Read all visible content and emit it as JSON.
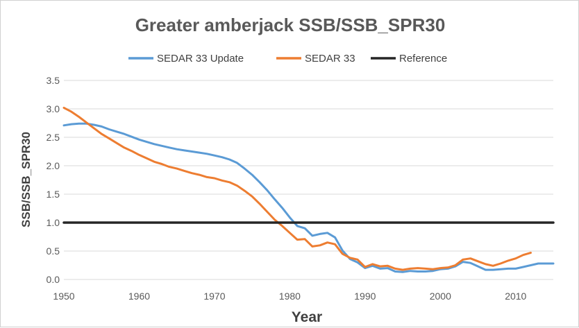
{
  "chart_data": {
    "type": "line",
    "title": "Greater amberjack SSB/SSB_SPR30",
    "xlabel": "Year",
    "ylabel": "SSB/SSB_SPR30",
    "xlim": [
      1950,
      2015
    ],
    "ylim": [
      0,
      3.5
    ],
    "x_ticks": [
      "1950",
      "1960",
      "1970",
      "1980",
      "1990",
      "2000",
      "2010"
    ],
    "y_ticks": [
      "0.0",
      "0.5",
      "1.0",
      "1.5",
      "2.0",
      "2.5",
      "3.0",
      "3.5"
    ],
    "grid": "horizontal",
    "legend_position": "top",
    "series": [
      {
        "name": "SEDAR 33 Update",
        "color": "#5b9bd5",
        "x": [
          1950,
          1951,
          1952,
          1953,
          1954,
          1955,
          1956,
          1957,
          1958,
          1959,
          1960,
          1961,
          1962,
          1963,
          1964,
          1965,
          1966,
          1967,
          1968,
          1969,
          1970,
          1971,
          1972,
          1973,
          1974,
          1975,
          1976,
          1977,
          1978,
          1979,
          1980,
          1981,
          1982,
          1983,
          1984,
          1985,
          1986,
          1987,
          1988,
          1989,
          1990,
          1991,
          1992,
          1993,
          1994,
          1995,
          1996,
          1997,
          1998,
          1999,
          2000,
          2001,
          2002,
          2003,
          2004,
          2005,
          2006,
          2007,
          2008,
          2009,
          2010,
          2011,
          2012,
          2013,
          2014,
          2015
        ],
        "values": [
          2.71,
          2.73,
          2.74,
          2.74,
          2.72,
          2.69,
          2.64,
          2.6,
          2.56,
          2.51,
          2.46,
          2.42,
          2.38,
          2.35,
          2.32,
          2.29,
          2.27,
          2.25,
          2.23,
          2.21,
          2.18,
          2.15,
          2.11,
          2.05,
          1.95,
          1.84,
          1.71,
          1.57,
          1.41,
          1.26,
          1.09,
          0.94,
          0.9,
          0.77,
          0.8,
          0.82,
          0.74,
          0.51,
          0.36,
          0.3,
          0.2,
          0.24,
          0.19,
          0.2,
          0.14,
          0.13,
          0.15,
          0.14,
          0.14,
          0.15,
          0.18,
          0.19,
          0.23,
          0.31,
          0.29,
          0.23,
          0.17,
          0.17,
          0.18,
          0.19,
          0.19,
          0.22,
          0.25,
          0.28,
          0.28,
          0.28
        ]
      },
      {
        "name": "SEDAR 33",
        "color": "#ed7d31",
        "x": [
          1950,
          1951,
          1952,
          1953,
          1954,
          1955,
          1956,
          1957,
          1958,
          1959,
          1960,
          1961,
          1962,
          1963,
          1964,
          1965,
          1966,
          1967,
          1968,
          1969,
          1970,
          1971,
          1972,
          1973,
          1974,
          1975,
          1976,
          1977,
          1978,
          1979,
          1980,
          1981,
          1982,
          1983,
          1984,
          1985,
          1986,
          1987,
          1988,
          1989,
          1990,
          1991,
          1992,
          1993,
          1994,
          1995,
          1996,
          1997,
          1998,
          1999,
          2000,
          2001,
          2002,
          2003,
          2004,
          2005,
          2006,
          2007,
          2008,
          2009,
          2010,
          2011,
          2012
        ],
        "values": [
          3.02,
          2.95,
          2.86,
          2.76,
          2.66,
          2.56,
          2.48,
          2.4,
          2.32,
          2.26,
          2.19,
          2.13,
          2.07,
          2.03,
          1.98,
          1.95,
          1.91,
          1.87,
          1.84,
          1.8,
          1.78,
          1.74,
          1.71,
          1.65,
          1.56,
          1.46,
          1.33,
          1.19,
          1.05,
          0.94,
          0.82,
          0.7,
          0.71,
          0.58,
          0.6,
          0.65,
          0.62,
          0.45,
          0.38,
          0.35,
          0.22,
          0.27,
          0.23,
          0.24,
          0.19,
          0.17,
          0.19,
          0.2,
          0.19,
          0.18,
          0.2,
          0.21,
          0.25,
          0.35,
          0.37,
          0.32,
          0.27,
          0.24,
          0.28,
          0.33,
          0.37,
          0.43,
          0.47
        ]
      },
      {
        "name": "Reference",
        "color": "#262626",
        "x": [
          1950,
          2015
        ],
        "values": [
          1.0,
          1.0
        ]
      }
    ]
  }
}
